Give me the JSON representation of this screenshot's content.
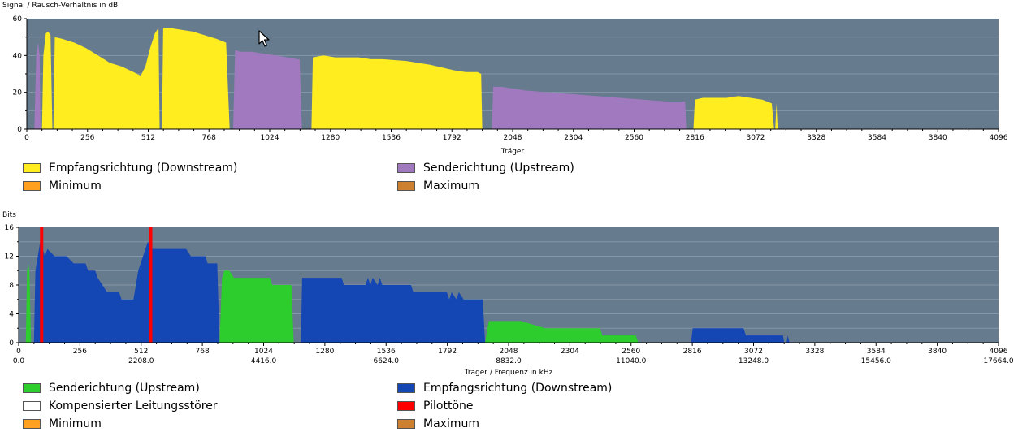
{
  "colors": {
    "plot_bg": "#667b8e",
    "grid": "#8497a8",
    "downstream_snr": "#ffed1f",
    "upstream_snr": "#a079bf",
    "minimum": "#ffa020",
    "maximum": "#cd8030",
    "upstream_bits": "#2ccd2c",
    "downstream_bits": "#1446b4",
    "compensated": "#ffffff",
    "pilot": "#ff0000"
  },
  "chart_data": [
    {
      "type": "area",
      "title": "Signal / Rausch-Verhältnis in dB",
      "xlabel": "Träger",
      "ylabel": "Signal / Rausch-Verhältnis in dB",
      "xlim": [
        0,
        4096
      ],
      "ylim": [
        0,
        60
      ],
      "xticks": [
        0,
        256,
        512,
        768,
        1024,
        1280,
        1536,
        1792,
        2048,
        2304,
        2560,
        2816,
        3072,
        3328,
        3584,
        3840,
        4096
      ],
      "yticks": [
        0,
        20,
        40,
        60
      ],
      "grid": true,
      "legend": [
        {
          "name": "Empfangsrichtung (Downstream)",
          "color": "#ffed1f"
        },
        {
          "name": "Senderichtung (Upstream)",
          "color": "#a079bf"
        },
        {
          "name": "Minimum",
          "color": "#ffa020"
        },
        {
          "name": "Maximum",
          "color": "#cd8030"
        }
      ],
      "series": [
        {
          "name": "Senderichtung (Upstream)",
          "color": "#a079bf",
          "points": [
            [
              32,
              0
            ],
            [
              40,
              40
            ],
            [
              48,
              47
            ],
            [
              54,
              40
            ],
            [
              58,
              0
            ]
          ]
        },
        {
          "name": "Empfangsrichtung (Downstream)",
          "color": "#ffed1f",
          "points": [
            [
              64,
              0
            ],
            [
              70,
              40
            ],
            [
              80,
              52
            ],
            [
              90,
              53
            ],
            [
              100,
              51
            ],
            [
              108,
              0
            ],
            [
              112,
              0
            ],
            [
              118,
              50
            ],
            [
              150,
              49
            ],
            [
              200,
              47
            ],
            [
              250,
              44
            ],
            [
              300,
              40
            ],
            [
              350,
              36
            ],
            [
              400,
              34
            ],
            [
              450,
              31
            ],
            [
              480,
              29
            ],
            [
              500,
              34
            ],
            [
              520,
              44
            ],
            [
              540,
              52
            ],
            [
              555,
              55
            ],
            [
              560,
              0
            ],
            [
              570,
              0
            ],
            [
              575,
              55
            ],
            [
              600,
              55
            ],
            [
              650,
              54
            ],
            [
              700,
              53
            ],
            [
              750,
              51
            ],
            [
              800,
              49
            ],
            [
              840,
              47
            ],
            [
              855,
              0
            ]
          ]
        },
        {
          "name": "Senderichtung (Upstream)",
          "color": "#a079bf",
          "points": [
            [
              870,
              0
            ],
            [
              878,
              43
            ],
            [
              900,
              42
            ],
            [
              950,
              42
            ],
            [
              1000,
              41
            ],
            [
              1050,
              40
            ],
            [
              1100,
              39
            ],
            [
              1140,
              38
            ],
            [
              1150,
              38
            ],
            [
              1160,
              0
            ]
          ]
        },
        {
          "name": "Empfangsrichtung (Downstream)",
          "color": "#ffed1f",
          "points": [
            [
              1200,
              0
            ],
            [
              1206,
              39
            ],
            [
              1250,
              40
            ],
            [
              1300,
              39
            ],
            [
              1400,
              39
            ],
            [
              1450,
              38
            ],
            [
              1500,
              38
            ],
            [
              1600,
              37
            ],
            [
              1700,
              35
            ],
            [
              1800,
              32
            ],
            [
              1850,
              31
            ],
            [
              1900,
              31
            ],
            [
              1915,
              30
            ],
            [
              1920,
              0
            ]
          ]
        },
        {
          "name": "Senderichtung (Upstream)",
          "color": "#a079bf",
          "points": [
            [
              1960,
              0
            ],
            [
              1966,
              23
            ],
            [
              2000,
              23
            ],
            [
              2050,
              22
            ],
            [
              2100,
              21
            ],
            [
              2200,
              20
            ],
            [
              2300,
              19
            ],
            [
              2400,
              18
            ],
            [
              2500,
              17
            ],
            [
              2600,
              16
            ],
            [
              2700,
              15
            ],
            [
              2760,
              15
            ],
            [
              2775,
              15
            ],
            [
              2780,
              0
            ]
          ]
        },
        {
          "name": "Empfangsrichtung (Downstream)",
          "color": "#ffed1f",
          "points": [
            [
              2810,
              0
            ],
            [
              2816,
              16
            ],
            [
              2850,
              17
            ],
            [
              2900,
              17
            ],
            [
              2950,
              17
            ],
            [
              3000,
              18
            ],
            [
              3050,
              17
            ],
            [
              3100,
              16
            ],
            [
              3140,
              14
            ],
            [
              3150,
              0
            ],
            [
              3155,
              0
            ],
            [
              3160,
              14
            ],
            [
              3165,
              0
            ]
          ]
        }
      ]
    },
    {
      "type": "area",
      "title": "Bits",
      "xlabel": "Träger / Frequenz in kHz",
      "ylabel": "Bits",
      "xlim": [
        0,
        4096
      ],
      "ylim": [
        0,
        16
      ],
      "xticks": [
        0,
        256,
        512,
        768,
        1024,
        1280,
        1536,
        1792,
        2048,
        2304,
        2560,
        2816,
        3072,
        3328,
        3584,
        3840,
        4096
      ],
      "yticks": [
        0,
        4,
        8,
        12,
        16
      ],
      "frequency_labels": [
        "0.0",
        "2208.0",
        "4416.0",
        "6624.0",
        "8832.0",
        "11040.0",
        "13248.0",
        "15456.0",
        "17664.0"
      ],
      "grid": true,
      "legend": [
        {
          "name": "Senderichtung (Upstream)",
          "color": "#2ccd2c"
        },
        {
          "name": "Empfangsrichtung (Downstream)",
          "color": "#1446b4"
        },
        {
          "name": "Kompensierter Leitungsstörer",
          "color": "#ffffff"
        },
        {
          "name": "Pilottöne",
          "color": "#ff0000"
        },
        {
          "name": "Minimum",
          "color": "#ffa020"
        },
        {
          "name": "Maximum",
          "color": "#cd8030"
        }
      ],
      "series": [
        {
          "name": "Senderichtung (Upstream)",
          "color": "#2ccd2c",
          "points": [
            [
              30,
              0
            ],
            [
              35,
              10
            ],
            [
              40,
              11
            ],
            [
              45,
              10
            ],
            [
              52,
              0
            ]
          ]
        },
        {
          "name": "Empfangsrichtung (Downstream)",
          "color": "#1446b4",
          "points": [
            [
              64,
              0
            ],
            [
              70,
              10
            ],
            [
              80,
              12
            ],
            [
              90,
              14
            ],
            [
              100,
              13
            ],
            [
              110,
              12
            ],
            [
              120,
              13
            ],
            [
              150,
              12
            ],
            [
              200,
              12
            ],
            [
              230,
              11
            ],
            [
              280,
              11
            ],
            [
              290,
              10
            ],
            [
              320,
              10
            ],
            [
              330,
              9
            ],
            [
              350,
              8
            ],
            [
              370,
              7
            ],
            [
              420,
              7
            ],
            [
              430,
              6
            ],
            [
              480,
              6
            ],
            [
              490,
              8
            ],
            [
              500,
              10
            ],
            [
              520,
              12
            ],
            [
              540,
              14
            ],
            [
              560,
              13
            ],
            [
              600,
              13
            ],
            [
              700,
              13
            ],
            [
              720,
              12
            ],
            [
              780,
              12
            ],
            [
              790,
              11
            ],
            [
              830,
              11
            ],
            [
              840,
              0
            ]
          ]
        },
        {
          "name": "Senderichtung (Upstream)",
          "color": "#2ccd2c",
          "points": [
            [
              840,
              0
            ],
            [
              850,
              9
            ],
            [
              860,
              10
            ],
            [
              880,
              10
            ],
            [
              900,
              9
            ],
            [
              1050,
              9
            ],
            [
              1060,
              8
            ],
            [
              1140,
              8
            ],
            [
              1150,
              0
            ]
          ]
        },
        {
          "name": "Empfangsrichtung (Downstream)",
          "color": "#1446b4",
          "points": [
            [
              1180,
              0
            ],
            [
              1185,
              9
            ],
            [
              1350,
              9
            ],
            [
              1360,
              8
            ],
            [
              1450,
              8
            ],
            [
              1460,
              9
            ],
            [
              1470,
              8
            ],
            [
              1480,
              9
            ],
            [
              1500,
              8
            ],
            [
              1510,
              9
            ],
            [
              1520,
              8
            ],
            [
              1640,
              8
            ],
            [
              1650,
              7
            ],
            [
              1790,
              7
            ],
            [
              1800,
              6
            ],
            [
              1810,
              7
            ],
            [
              1830,
              6
            ],
            [
              1840,
              7
            ],
            [
              1860,
              6
            ],
            [
              1940,
              6
            ],
            [
              1950,
              0
            ]
          ]
        },
        {
          "name": "Senderichtung (Upstream)",
          "color": "#2ccd2c",
          "points": [
            [
              1950,
              0
            ],
            [
              1965,
              3
            ],
            [
              2100,
              3
            ],
            [
              2200,
              2
            ],
            [
              2430,
              2
            ],
            [
              2440,
              1
            ],
            [
              2580,
              1
            ],
            [
              2590,
              0
            ]
          ]
        },
        {
          "name": "Empfangsrichtung (Downstream)",
          "color": "#1446b4",
          "points": [
            [
              2810,
              0
            ],
            [
              2818,
              2
            ],
            [
              3030,
              2
            ],
            [
              3040,
              1
            ],
            [
              3195,
              1
            ],
            [
              3200,
              0
            ],
            [
              3210,
              0
            ],
            [
              3215,
              1
            ],
            [
              3222,
              0
            ]
          ]
        }
      ],
      "pilot_tones": [
        96,
        552
      ]
    }
  ]
}
